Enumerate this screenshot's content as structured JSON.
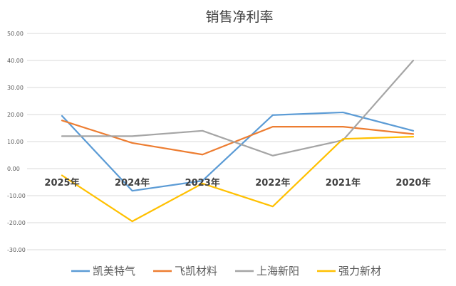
{
  "chart_data": {
    "type": "line",
    "title": "销售净利率",
    "categories": [
      "2025年",
      "2024年",
      "2023年",
      "2022年",
      "2021年",
      "2020年"
    ],
    "ylim": [
      -30,
      50
    ],
    "ytick_step": 10,
    "ytick_labels": [
      "-30.00",
      "-20.00",
      "-10.00",
      "0.00",
      "10.00",
      "20.00",
      "30.00",
      "40.00",
      "50.00"
    ],
    "grid": true,
    "legend_position": "bottom",
    "series": [
      {
        "name": "凯美特气",
        "color": "#5b9bd5",
        "values": [
          19.5,
          -8.2,
          -4.5,
          19.8,
          20.8,
          14.0
        ]
      },
      {
        "name": "飞凯材料",
        "color": "#ed7d31",
        "values": [
          17.8,
          9.5,
          5.2,
          15.5,
          15.5,
          12.8
        ]
      },
      {
        "name": "上海新阳",
        "color": "#a5a5a5",
        "values": [
          12.0,
          12.0,
          14.0,
          4.8,
          10.5,
          40.0
        ]
      },
      {
        "name": "强力新材",
        "color": "#ffc000",
        "values": [
          -2.5,
          -19.5,
          -5.5,
          -14.0,
          11.0,
          11.8
        ]
      }
    ]
  }
}
